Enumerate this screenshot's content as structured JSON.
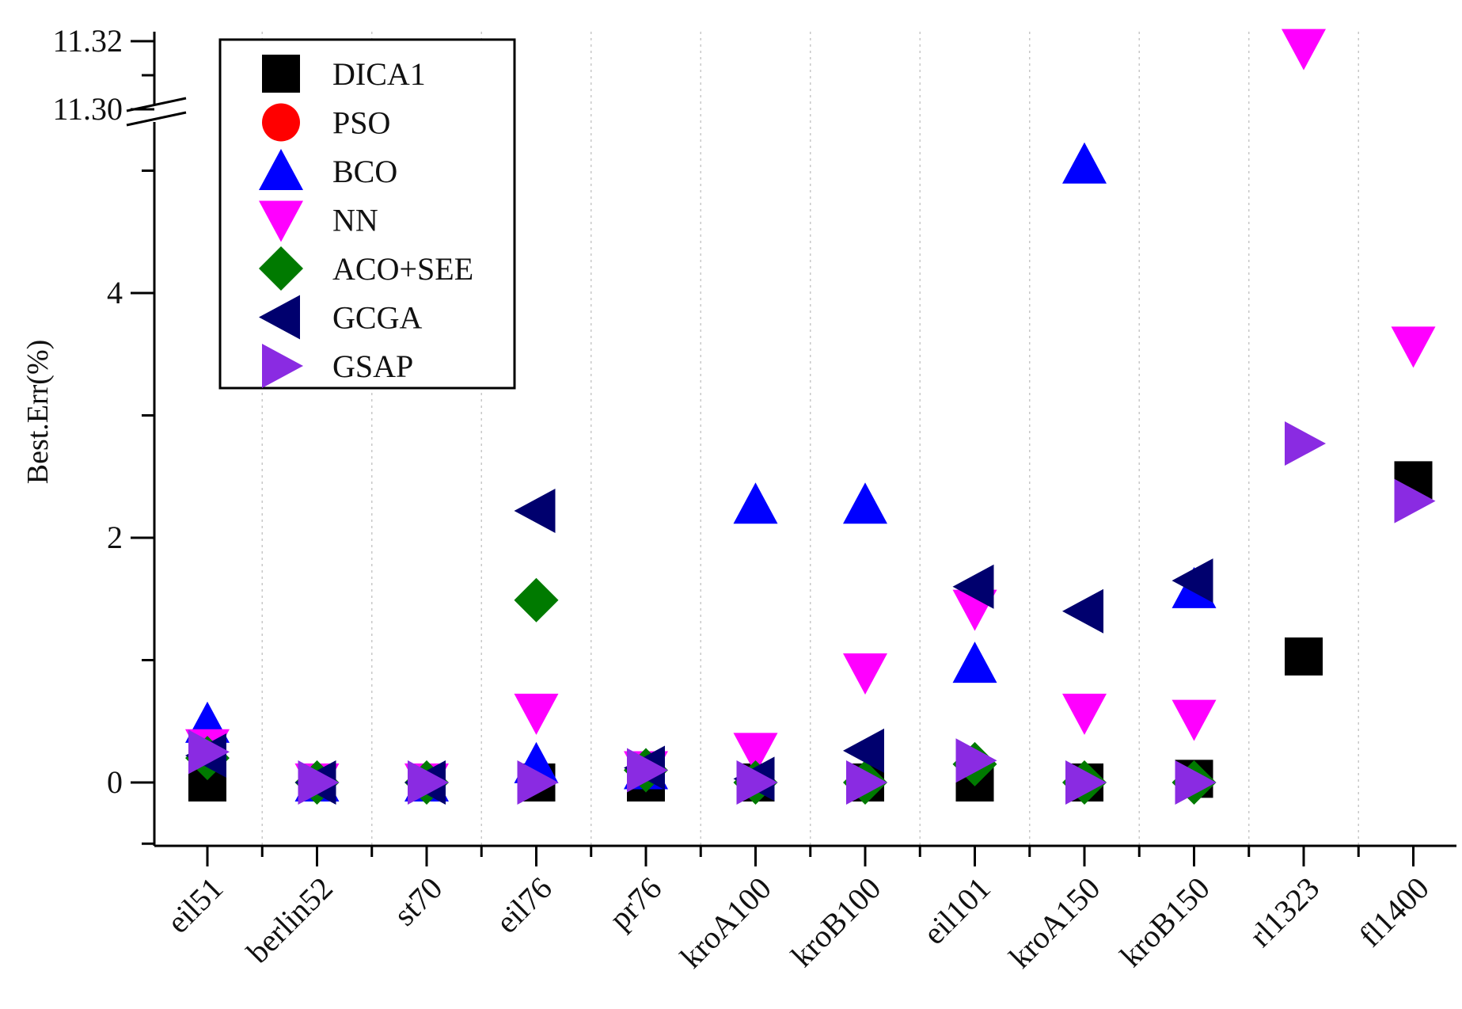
{
  "chart_data": {
    "type": "scatter",
    "title": "",
    "xlabel": "",
    "ylabel": "Best.Err(%)",
    "categories": [
      "eil51",
      "berlin52",
      "st70",
      "eil76",
      "pr76",
      "kroA100",
      "kroB100",
      "eil101",
      "kroA150",
      "kroB150",
      "rl1323",
      "fl1400"
    ],
    "y_ticks": [
      "0",
      "2",
      "4",
      "11.30",
      "11.32"
    ],
    "y_axis_break": {
      "lower_range": [
        -0.5,
        5.2
      ],
      "upper_range": [
        11.29,
        11.325
      ]
    },
    "grid": "vertical dotted lines at category boundaries",
    "legend_position": "top-left",
    "series": [
      {
        "name": "DICA1",
        "marker": "square",
        "color": "#000000",
        "values": [
          0.0,
          0.0,
          0.0,
          0.0,
          0.0,
          0.0,
          0.0,
          0.0,
          0.0,
          0.03,
          1.03,
          2.47
        ]
      },
      {
        "name": "PSO",
        "marker": "circle",
        "color": "#ff0000",
        "values": [
          0.3,
          0.0,
          0.0,
          null,
          null,
          null,
          null,
          null,
          null,
          null,
          null,
          null
        ]
      },
      {
        "name": "BCO",
        "marker": "triangle-up",
        "color": "#0000ff",
        "values": [
          0.48,
          0.0,
          0.0,
          0.15,
          0.1,
          2.27,
          2.27,
          0.97,
          5.05,
          1.58,
          null,
          null
        ]
      },
      {
        "name": "NN",
        "marker": "triangle-down",
        "color": "#ff00ff",
        "values": [
          0.28,
          0.0,
          0.0,
          0.57,
          0.1,
          0.25,
          0.9,
          1.42,
          0.57,
          0.52,
          11.318,
          3.57
        ]
      },
      {
        "name": "ACO+SEE",
        "marker": "diamond",
        "color": "#007a00",
        "values": [
          0.2,
          0.0,
          0.0,
          1.49,
          0.1,
          0.0,
          0.0,
          0.15,
          0.0,
          0.0,
          null,
          null
        ]
      },
      {
        "name": "GCGA",
        "marker": "triangle-left",
        "color": "#00006e",
        "values": [
          0.22,
          0.0,
          0.0,
          2.22,
          0.12,
          0.03,
          0.26,
          1.6,
          1.4,
          1.65,
          null,
          null
        ]
      },
      {
        "name": "GSAP",
        "marker": "triangle-right",
        "color": "#8a2be2",
        "values": [
          0.25,
          0.0,
          0.0,
          0.0,
          0.1,
          0.0,
          0.0,
          0.18,
          0.0,
          0.0,
          2.77,
          2.3
        ]
      }
    ]
  }
}
